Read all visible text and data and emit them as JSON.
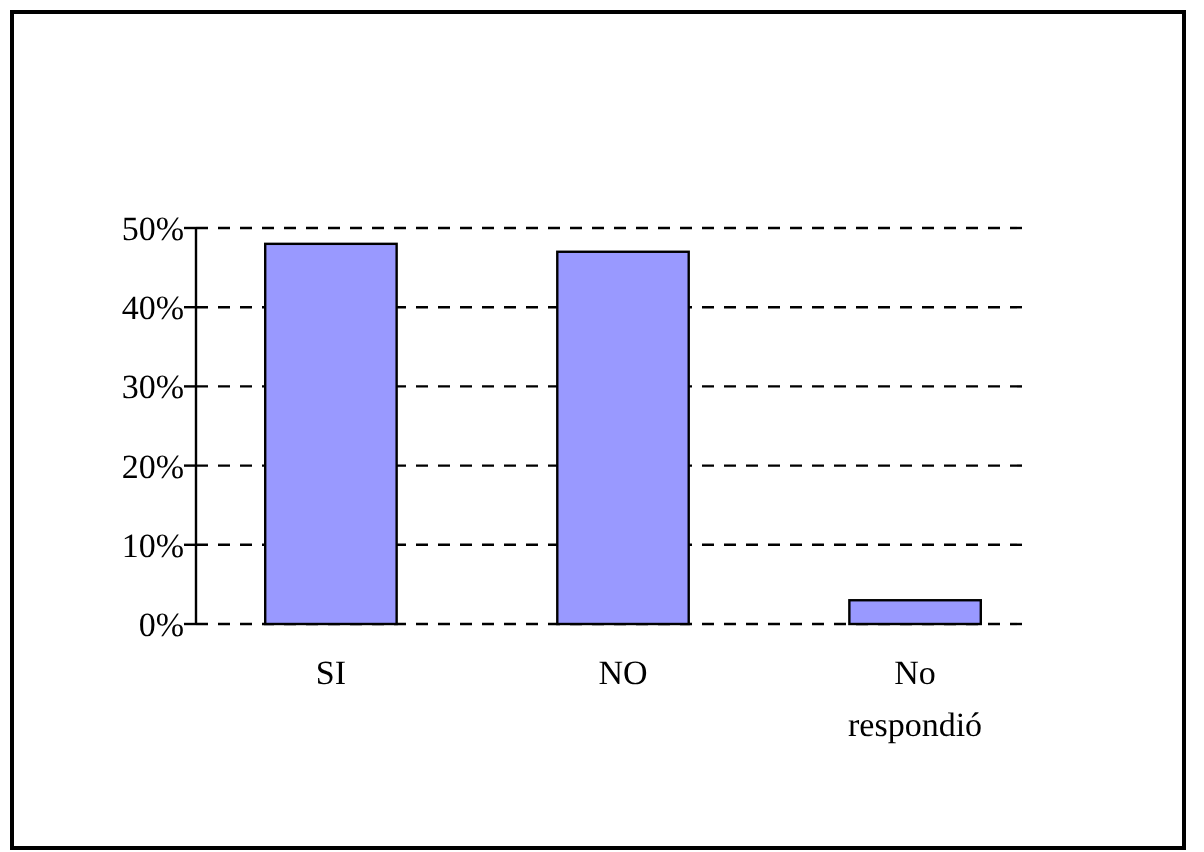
{
  "chart_data": {
    "type": "bar",
    "categories": [
      "SI",
      "NO",
      "No respondió"
    ],
    "values": [
      48,
      47,
      3
    ],
    "color": "#9999ff",
    "ylim": [
      0,
      50
    ],
    "yticks": [
      {
        "value": 0,
        "label": "0%"
      },
      {
        "value": 10,
        "label": "10%"
      },
      {
        "value": 20,
        "label": "20%"
      },
      {
        "value": 30,
        "label": "30%"
      },
      {
        "value": 40,
        "label": "40%"
      },
      {
        "value": 50,
        "label": "50%"
      }
    ],
    "grid": "y"
  }
}
